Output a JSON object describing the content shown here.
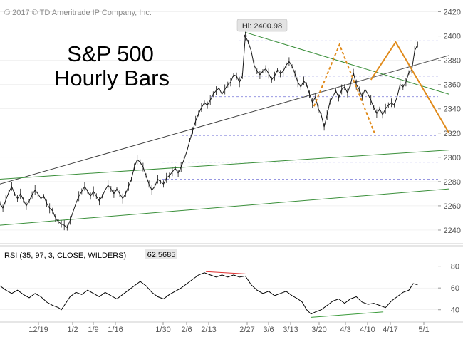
{
  "copyright": "© 2017 © TD Ameritrade IP Company, Inc.",
  "title_line1": "S&P 500",
  "title_line2": "Hourly Bars",
  "hi_label": "Hi: 2400.98",
  "rsi_label": "RSI (35, 97, 3, CLOSE, WILDERS)",
  "rsi_value": "62.5685",
  "colors": {
    "price": "#1a1a1a",
    "trend_black": "#444444",
    "trend_green": "#3a8f3a",
    "projection_orange": "#e08a1a",
    "support_dashed": "#8888dd",
    "rsi_red": "#e03030",
    "rsi_green": "#3a9a3a",
    "axis_text": "#555555",
    "grid": "#e6e6e6"
  },
  "chart_data": [
    {
      "type": "line",
      "name": "price-panel",
      "x_tick_labels": [
        "12/19",
        "1/2",
        "1/9",
        "1/16",
        "1/30",
        "2/6",
        "2/13",
        "2/27",
        "3/6",
        "3/13",
        "3/20",
        "4/3",
        "4/10",
        "4/17",
        "5/1"
      ],
      "y_ticks": [
        2240,
        2260,
        2280,
        2300,
        2320,
        2340,
        2360,
        2380,
        2400,
        2420
      ],
      "ylim": [
        2230,
        2425
      ],
      "xlim": [
        0,
        600
      ],
      "price_series": [
        [
          0,
          2262
        ],
        [
          4,
          2258
        ],
        [
          8,
          2265
        ],
        [
          12,
          2271
        ],
        [
          16,
          2276
        ],
        [
          20,
          2270
        ],
        [
          24,
          2266
        ],
        [
          28,
          2270
        ],
        [
          32,
          2265
        ],
        [
          36,
          2260
        ],
        [
          40,
          2264
        ],
        [
          44,
          2269
        ],
        [
          48,
          2273
        ],
        [
          52,
          2270
        ],
        [
          56,
          2266
        ],
        [
          60,
          2268
        ],
        [
          64,
          2262
        ],
        [
          68,
          2258
        ],
        [
          72,
          2256
        ],
        [
          76,
          2250
        ],
        [
          80,
          2247
        ],
        [
          84,
          2245
        ],
        [
          88,
          2244
        ],
        [
          92,
          2242
        ],
        [
          96,
          2248
        ],
        [
          100,
          2255
        ],
        [
          104,
          2262
        ],
        [
          108,
          2268
        ],
        [
          112,
          2272
        ],
        [
          116,
          2276
        ],
        [
          120,
          2272
        ],
        [
          124,
          2268
        ],
        [
          128,
          2272
        ],
        [
          132,
          2268
        ],
        [
          136,
          2264
        ],
        [
          140,
          2268
        ],
        [
          144,
          2273
        ],
        [
          148,
          2277
        ],
        [
          152,
          2274
        ],
        [
          156,
          2270
        ],
        [
          160,
          2274
        ],
        [
          164,
          2270
        ],
        [
          168,
          2266
        ],
        [
          172,
          2270
        ],
        [
          176,
          2276
        ],
        [
          180,
          2282
        ],
        [
          184,
          2292
        ],
        [
          188,
          2298
        ],
        [
          192,
          2296
        ],
        [
          196,
          2292
        ],
        [
          200,
          2285
        ],
        [
          204,
          2278
        ],
        [
          208,
          2273
        ],
        [
          212,
          2276
        ],
        [
          216,
          2282
        ],
        [
          220,
          2280
        ],
        [
          224,
          2278
        ],
        [
          228,
          2283
        ],
        [
          232,
          2285
        ],
        [
          236,
          2288
        ],
        [
          240,
          2291
        ],
        [
          244,
          2287
        ],
        [
          248,
          2292
        ],
        [
          252,
          2298
        ],
        [
          256,
          2305
        ],
        [
          260,
          2314
        ],
        [
          264,
          2322
        ],
        [
          268,
          2330
        ],
        [
          272,
          2336
        ],
        [
          276,
          2341
        ],
        [
          280,
          2345
        ],
        [
          284,
          2343
        ],
        [
          288,
          2347
        ],
        [
          292,
          2352
        ],
        [
          296,
          2355
        ],
        [
          300,
          2357
        ],
        [
          304,
          2352
        ],
        [
          308,
          2356
        ],
        [
          312,
          2360
        ],
        [
          316,
          2362
        ],
        [
          320,
          2368
        ],
        [
          324,
          2367
        ],
        [
          328,
          2362
        ],
        [
          332,
          2367
        ],
        [
          336,
          2400
        ],
        [
          340,
          2395
        ],
        [
          344,
          2388
        ],
        [
          348,
          2376
        ],
        [
          352,
          2371
        ],
        [
          356,
          2368
        ],
        [
          360,
          2371
        ],
        [
          364,
          2373
        ],
        [
          368,
          2369
        ],
        [
          372,
          2364
        ],
        [
          376,
          2367
        ],
        [
          380,
          2372
        ],
        [
          384,
          2369
        ],
        [
          388,
          2371
        ],
        [
          392,
          2376
        ],
        [
          396,
          2379
        ],
        [
          400,
          2375
        ],
        [
          404,
          2369
        ],
        [
          408,
          2362
        ],
        [
          412,
          2358
        ],
        [
          416,
          2363
        ],
        [
          420,
          2360
        ],
        [
          424,
          2352
        ],
        [
          428,
          2345
        ],
        [
          432,
          2350
        ],
        [
          436,
          2340
        ],
        [
          440,
          2335
        ],
        [
          444,
          2325
        ],
        [
          448,
          2335
        ],
        [
          452,
          2346
        ],
        [
          456,
          2350
        ],
        [
          460,
          2355
        ],
        [
          464,
          2349
        ],
        [
          468,
          2356
        ],
        [
          472,
          2358
        ],
        [
          476,
          2353
        ],
        [
          480,
          2360
        ],
        [
          484,
          2370
        ],
        [
          488,
          2360
        ],
        [
          492,
          2356
        ],
        [
          496,
          2350
        ],
        [
          500,
          2356
        ],
        [
          504,
          2352
        ],
        [
          508,
          2347
        ],
        [
          512,
          2341
        ],
        [
          516,
          2336
        ],
        [
          520,
          2340
        ],
        [
          524,
          2335
        ],
        [
          528,
          2340
        ],
        [
          532,
          2343
        ],
        [
          536,
          2345
        ],
        [
          540,
          2343
        ],
        [
          544,
          2350
        ],
        [
          548,
          2360
        ],
        [
          552,
          2358
        ],
        [
          556,
          2362
        ],
        [
          560,
          2370
        ],
        [
          564,
          2372
        ],
        [
          568,
          2388
        ],
        [
          572,
          2393
        ]
      ],
      "support_levels": [
        2396,
        2367,
        2350,
        2318,
        2296,
        2282
      ],
      "trendlines": [
        {
          "color": "black",
          "from": [
            0,
            2278
          ],
          "to": [
            615,
            2384
          ]
        },
        {
          "color": "green",
          "from": [
            0,
            2292
          ],
          "to": [
            615,
            2292
          ]
        },
        {
          "color": "green",
          "from": [
            0,
            2282
          ],
          "to": [
            615,
            2306
          ]
        },
        {
          "color": "green",
          "from": [
            0,
            2244
          ],
          "to": [
            615,
            2274
          ]
        },
        {
          "color": "green",
          "from": [
            336,
            2403
          ],
          "to": [
            615,
            2352
          ]
        }
      ],
      "projections": [
        {
          "style": "dotted",
          "points": [
            [
              430,
              2342
            ],
            [
              465,
              2393
            ],
            [
              513,
              2320
            ]
          ]
        },
        {
          "style": "solid",
          "points": [
            [
              508,
              2364
            ],
            [
              542,
              2395
            ],
            [
              615,
              2320
            ]
          ]
        }
      ]
    },
    {
      "type": "line",
      "name": "rsi-panel",
      "y_ticks": [
        40,
        60,
        80
      ],
      "ylim": [
        30,
        85
      ],
      "xlim": [
        0,
        600
      ],
      "rsi_series": [
        [
          0,
          62
        ],
        [
          8,
          58
        ],
        [
          16,
          55
        ],
        [
          24,
          58
        ],
        [
          32,
          54
        ],
        [
          40,
          51
        ],
        [
          48,
          55
        ],
        [
          56,
          52
        ],
        [
          64,
          47
        ],
        [
          72,
          44
        ],
        [
          80,
          42
        ],
        [
          84,
          40
        ],
        [
          90,
          46
        ],
        [
          96,
          52
        ],
        [
          104,
          56
        ],
        [
          112,
          54
        ],
        [
          120,
          58
        ],
        [
          128,
          55
        ],
        [
          136,
          52
        ],
        [
          144,
          56
        ],
        [
          152,
          53
        ],
        [
          160,
          50
        ],
        [
          168,
          54
        ],
        [
          176,
          58
        ],
        [
          184,
          62
        ],
        [
          192,
          66
        ],
        [
          200,
          62
        ],
        [
          208,
          56
        ],
        [
          216,
          52
        ],
        [
          224,
          50
        ],
        [
          232,
          54
        ],
        [
          240,
          57
        ],
        [
          248,
          60
        ],
        [
          256,
          64
        ],
        [
          264,
          68
        ],
        [
          272,
          72
        ],
        [
          280,
          74
        ],
        [
          288,
          72
        ],
        [
          296,
          70
        ],
        [
          304,
          72
        ],
        [
          312,
          70
        ],
        [
          320,
          72
        ],
        [
          328,
          70
        ],
        [
          336,
          71
        ],
        [
          344,
          63
        ],
        [
          352,
          58
        ],
        [
          360,
          55
        ],
        [
          368,
          57
        ],
        [
          376,
          53
        ],
        [
          384,
          55
        ],
        [
          392,
          57
        ],
        [
          400,
          53
        ],
        [
          408,
          50
        ],
        [
          414,
          47
        ],
        [
          420,
          40
        ],
        [
          426,
          36
        ],
        [
          432,
          38
        ],
        [
          440,
          40
        ],
        [
          448,
          44
        ],
        [
          456,
          48
        ],
        [
          464,
          50
        ],
        [
          472,
          46
        ],
        [
          480,
          50
        ],
        [
          488,
          52
        ],
        [
          496,
          47
        ],
        [
          504,
          45
        ],
        [
          512,
          46
        ],
        [
          520,
          44
        ],
        [
          528,
          42
        ],
        [
          536,
          48
        ],
        [
          544,
          52
        ],
        [
          552,
          56
        ],
        [
          560,
          58
        ],
        [
          566,
          64
        ],
        [
          572,
          63
        ]
      ],
      "divergence_lines": [
        {
          "color": "red",
          "from": [
            282,
            75
          ],
          "to": [
            336,
            73
          ]
        },
        {
          "color": "green",
          "from": [
            426,
            33
          ],
          "to": [
            525,
            38
          ]
        }
      ]
    }
  ]
}
